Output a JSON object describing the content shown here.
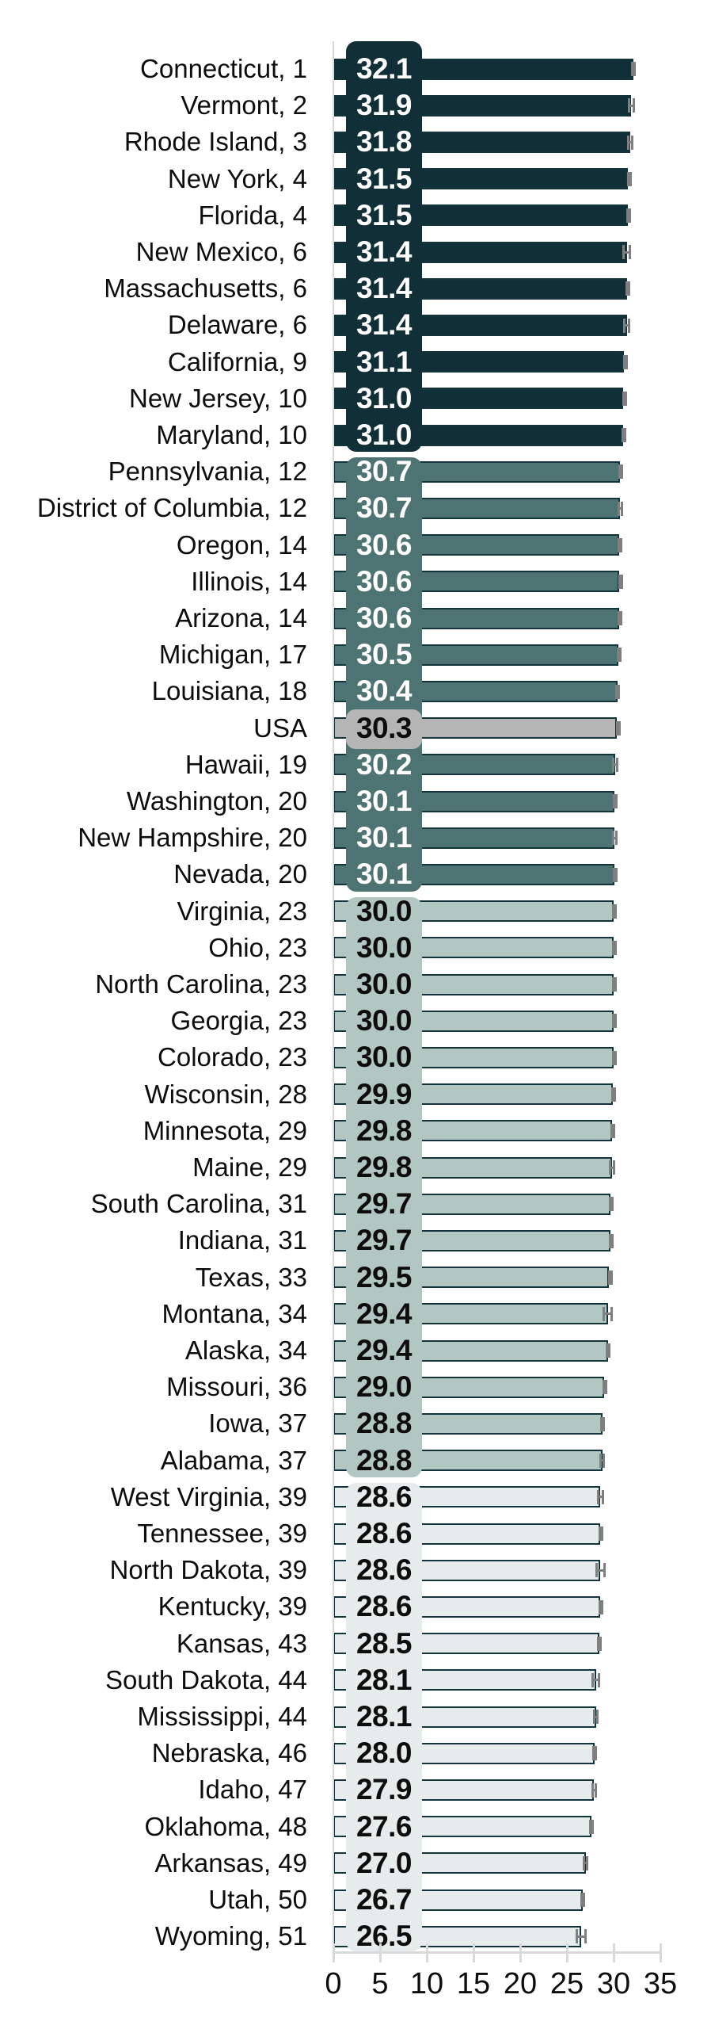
{
  "chart_data": {
    "type": "bar",
    "orientation": "horizontal",
    "title": "",
    "x_axis": {
      "min": 0,
      "max": 35,
      "tick_step": 5,
      "tick_labels": [
        "0",
        "5",
        "10",
        "15",
        "20",
        "25",
        "30",
        "35"
      ],
      "grid": false
    },
    "legend": "none",
    "colors": {
      "bar_outline": "#12343a",
      "error_bar": "#7f7f7f",
      "axis_line": "#d9d9d9",
      "label_text": "#0d0d0d",
      "value_text_light": "#ffffff",
      "value_text_dark": "#0d0d0d"
    },
    "groups": [
      {
        "name": "band-rank-1-10",
        "start": 0,
        "end": 10,
        "fill": "#112f36",
        "text_color": "#ffffff",
        "overlay": false
      },
      {
        "name": "band-rank-12-20",
        "start": 11,
        "end": 22,
        "fill": "#4d7473",
        "text_color": "#ffffff",
        "overlay": false
      },
      {
        "name": "band-usa",
        "start": 18,
        "end": 18,
        "fill": "#b5b5b5",
        "text_color": "#0d0d0d",
        "overlay": true
      },
      {
        "name": "band-rank-23-37",
        "start": 23,
        "end": 38,
        "fill": "#b2c6c2",
        "text_color": "#0d0d0d",
        "overlay": false
      },
      {
        "name": "band-rank-39-51",
        "start": 39,
        "end": 51,
        "fill": "#e5eceb",
        "text_color": "#0d0d0d",
        "overlay": false
      }
    ],
    "rows": [
      {
        "label": "Connecticut, 1",
        "state": "Connecticut",
        "rank": 1,
        "value": 32.1,
        "value_label": "32.1",
        "error": 0.2
      },
      {
        "label": "Vermont, 2",
        "state": "Vermont",
        "rank": 2,
        "value": 31.9,
        "value_label": "31.9",
        "error": 0.35
      },
      {
        "label": "Rhode Island, 3",
        "state": "Rhode Island",
        "rank": 3,
        "value": 31.8,
        "value_label": "31.8",
        "error": 0.35
      },
      {
        "label": "New York, 4",
        "state": "New York",
        "rank": 4,
        "value": 31.5,
        "value_label": "31.5",
        "error": 0.1
      },
      {
        "label": "Florida, 4",
        "state": "Florida",
        "rank": 4,
        "value": 31.5,
        "value_label": "31.5",
        "error": 0.12
      },
      {
        "label": "New Mexico, 6",
        "state": "New Mexico",
        "rank": 6,
        "value": 31.4,
        "value_label": "31.4",
        "error": 0.45
      },
      {
        "label": "Massachusetts, 6",
        "state": "Massachusetts",
        "rank": 6,
        "value": 31.4,
        "value_label": "31.4",
        "error": 0.12
      },
      {
        "label": "Delaware, 6",
        "state": "Delaware",
        "rank": 6,
        "value": 31.4,
        "value_label": "31.4",
        "error": 0.4
      },
      {
        "label": "California, 9",
        "state": "California",
        "rank": 9,
        "value": 31.1,
        "value_label": "31.1",
        "error": 0.08
      },
      {
        "label": "New Jersey, 10",
        "state": "New Jersey",
        "rank": 10,
        "value": 31.0,
        "value_label": "31.0",
        "error": 0.1
      },
      {
        "label": "Maryland, 10",
        "state": "Maryland",
        "rank": 10,
        "value": 31.0,
        "value_label": "31.0",
        "error": 0.15
      },
      {
        "label": "Pennsylvania, 12",
        "state": "Pennsylvania",
        "rank": 12,
        "value": 30.7,
        "value_label": "30.7",
        "error": 0.15
      },
      {
        "label": "District of Columbia, 12",
        "state": "District of Columbia",
        "rank": 12,
        "value": 30.7,
        "value_label": "30.7",
        "error": 0.3
      },
      {
        "label": "Oregon, 14",
        "state": "Oregon",
        "rank": 14,
        "value": 30.6,
        "value_label": "30.6",
        "error": 0.2
      },
      {
        "label": "Illinois, 14",
        "state": "Illinois",
        "rank": 14,
        "value": 30.6,
        "value_label": "30.6",
        "error": 0.12
      },
      {
        "label": "Arizona, 14",
        "state": "Arizona",
        "rank": 14,
        "value": 30.6,
        "value_label": "30.6",
        "error": 0.18
      },
      {
        "label": "Michigan, 17",
        "state": "Michigan",
        "rank": 17,
        "value": 30.5,
        "value_label": "30.5",
        "error": 0.15
      },
      {
        "label": "Louisiana, 18",
        "state": "Louisiana",
        "rank": 18,
        "value": 30.4,
        "value_label": "30.4",
        "error": 0.25
      },
      {
        "label": "USA",
        "state": "USA",
        "rank": null,
        "value": 30.3,
        "value_label": "30.3",
        "error": 0.05
      },
      {
        "label": "Hawaii, 19",
        "state": "Hawaii",
        "rank": 19,
        "value": 30.2,
        "value_label": "30.2",
        "error": 0.35
      },
      {
        "label": "Washington, 20",
        "state": "Washington",
        "rank": 20,
        "value": 30.1,
        "value_label": "30.1",
        "error": 0.15
      },
      {
        "label": "New Hampshire, 20",
        "state": "New Hampshire",
        "rank": 20,
        "value": 30.1,
        "value_label": "30.1",
        "error": 0.3
      },
      {
        "label": "Nevada, 20",
        "state": "Nevada",
        "rank": 20,
        "value": 30.1,
        "value_label": "30.1",
        "error": 0.2
      },
      {
        "label": "Virginia, 23",
        "state": "Virginia",
        "rank": 23,
        "value": 30.0,
        "value_label": "30.0",
        "error": 0.15
      },
      {
        "label": "Ohio, 23",
        "state": "Ohio",
        "rank": 23,
        "value": 30.0,
        "value_label": "30.0",
        "error": 0.15
      },
      {
        "label": "North Carolina, 23",
        "state": "North Carolina",
        "rank": 23,
        "value": 30.0,
        "value_label": "30.0",
        "error": 0.15
      },
      {
        "label": "Georgia, 23",
        "state": "Georgia",
        "rank": 23,
        "value": 30.0,
        "value_label": "30.0",
        "error": 0.15
      },
      {
        "label": "Colorado, 23",
        "state": "Colorado",
        "rank": 23,
        "value": 30.0,
        "value_label": "30.0",
        "error": 0.18
      },
      {
        "label": "Wisconsin, 28",
        "state": "Wisconsin",
        "rank": 28,
        "value": 29.9,
        "value_label": "29.9",
        "error": 0.18
      },
      {
        "label": "Minnesota, 29",
        "state": "Minnesota",
        "rank": 29,
        "value": 29.8,
        "value_label": "29.8",
        "error": 0.15
      },
      {
        "label": "Maine, 29",
        "state": "Maine",
        "rank": 29,
        "value": 29.8,
        "value_label": "29.8",
        "error": 0.35
      },
      {
        "label": "South Carolina, 31",
        "state": "South Carolina",
        "rank": 31,
        "value": 29.7,
        "value_label": "29.7",
        "error": 0.25
      },
      {
        "label": "Indiana, 31",
        "state": "Indiana",
        "rank": 31,
        "value": 29.7,
        "value_label": "29.7",
        "error": 0.18
      },
      {
        "label": "Texas, 33",
        "state": "Texas",
        "rank": 33,
        "value": 29.5,
        "value_label": "29.5",
        "error": 0.1
      },
      {
        "label": "Montana, 34",
        "state": "Montana",
        "rank": 34,
        "value": 29.4,
        "value_label": "29.4",
        "error": 0.55
      },
      {
        "label": "Alaska, 34",
        "state": "Alaska",
        "rank": 34,
        "value": 29.4,
        "value_label": "29.4",
        "error": 0.25
      },
      {
        "label": "Missouri, 36",
        "state": "Missouri",
        "rank": 36,
        "value": 29.0,
        "value_label": "29.0",
        "error": 0.15
      },
      {
        "label": "Iowa, 37",
        "state": "Iowa",
        "rank": 37,
        "value": 28.8,
        "value_label": "28.8",
        "error": 0.25
      },
      {
        "label": "Alabama, 37",
        "state": "Alabama",
        "rank": 37,
        "value": 28.8,
        "value_label": "28.8",
        "error": 0.3
      },
      {
        "label": "West Virginia, 39",
        "state": "West Virginia",
        "rank": 39,
        "value": 28.6,
        "value_label": "28.6",
        "error": 0.35
      },
      {
        "label": "Tennessee, 39",
        "state": "Tennessee",
        "rank": 39,
        "value": 28.6,
        "value_label": "28.6",
        "error": 0.2
      },
      {
        "label": "North Dakota, 39",
        "state": "North Dakota",
        "rank": 39,
        "value": 28.6,
        "value_label": "28.6",
        "error": 0.55
      },
      {
        "label": "Kentucky, 39",
        "state": "Kentucky",
        "rank": 39,
        "value": 28.6,
        "value_label": "28.6",
        "error": 0.2
      },
      {
        "label": "Kansas, 43",
        "state": "Kansas",
        "rank": 43,
        "value": 28.5,
        "value_label": "28.5",
        "error": 0.25
      },
      {
        "label": "South Dakota, 44",
        "state": "South Dakota",
        "rank": 44,
        "value": 28.1,
        "value_label": "28.1",
        "error": 0.5
      },
      {
        "label": "Mississippi, 44",
        "state": "Mississippi",
        "rank": 44,
        "value": 28.1,
        "value_label": "28.1",
        "error": 0.3
      },
      {
        "label": "Nebraska, 46",
        "state": "Nebraska",
        "rank": 46,
        "value": 28.0,
        "value_label": "28.0",
        "error": 0.25
      },
      {
        "label": "Idaho, 47",
        "state": "Idaho",
        "rank": 47,
        "value": 27.9,
        "value_label": "27.9",
        "error": 0.3
      },
      {
        "label": "Oklahoma, 48",
        "state": "Oklahoma",
        "rank": 48,
        "value": 27.6,
        "value_label": "27.6",
        "error": 0.25
      },
      {
        "label": "Arkansas, 49",
        "state": "Arkansas",
        "rank": 49,
        "value": 27.0,
        "value_label": "27.0",
        "error": 0.3
      },
      {
        "label": "Utah, 50",
        "state": "Utah",
        "rank": 50,
        "value": 26.7,
        "value_label": "26.7",
        "error": 0.25
      },
      {
        "label": "Wyoming, 51",
        "state": "Wyoming",
        "rank": 51,
        "value": 26.5,
        "value_label": "26.5",
        "error": 0.6
      }
    ]
  }
}
